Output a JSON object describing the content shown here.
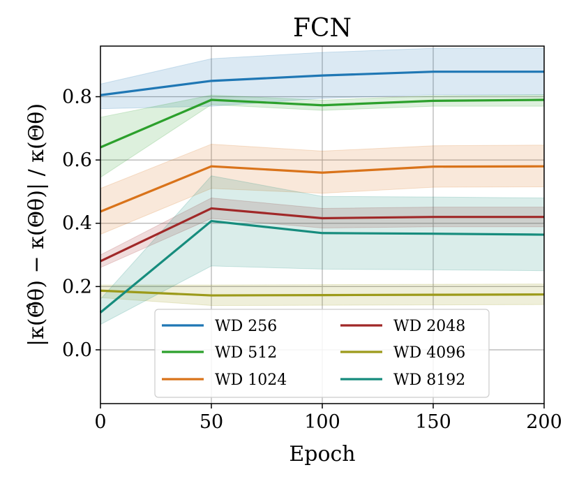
{
  "chart_data": {
    "type": "line",
    "title": "FCN",
    "xlabel": "Epoch",
    "ylabel": "|κ(Θ̂θ) − κ(Θθ)| / κ(Θθ)",
    "xlim": [
      0,
      200
    ],
    "ylim": [
      -0.17,
      0.96
    ],
    "xticks": [
      0,
      50,
      100,
      150,
      200
    ],
    "xtick_labels": [
      "0",
      "50",
      "100",
      "150",
      "200"
    ],
    "yticks": [
      0.0,
      0.2,
      0.4,
      0.6,
      0.8
    ],
    "ytick_labels": [
      "0.0",
      "0.2",
      "0.4",
      "0.6",
      "0.8"
    ],
    "grid": true,
    "legend_position": "bottom-center",
    "legend_columns": 2,
    "x": [
      0,
      50,
      100,
      150,
      200
    ],
    "series": [
      {
        "name": "WD 256",
        "color": "#1f77b4",
        "values": [
          0.805,
          0.85,
          0.867,
          0.879,
          0.879
        ],
        "lower": [
          0.762,
          0.77,
          0.795,
          0.806,
          0.806
        ],
        "upper": [
          0.84,
          0.92,
          0.94,
          0.953,
          0.953
        ]
      },
      {
        "name": "WD 512",
        "color": "#2ca02c",
        "values": [
          0.64,
          0.79,
          0.773,
          0.787,
          0.79
        ],
        "lower": [
          0.545,
          0.775,
          0.757,
          0.77,
          0.77
        ],
        "upper": [
          0.735,
          0.805,
          0.789,
          0.803,
          0.806
        ]
      },
      {
        "name": "WD 1024",
        "color": "#d9731a",
        "values": [
          0.437,
          0.58,
          0.56,
          0.579,
          0.58
        ],
        "lower": [
          0.365,
          0.51,
          0.495,
          0.514,
          0.515
        ],
        "upper": [
          0.51,
          0.65,
          0.628,
          0.645,
          0.647
        ]
      },
      {
        "name": "WD 2048",
        "color": "#a02828",
        "values": [
          0.28,
          0.447,
          0.416,
          0.42,
          0.42
        ],
        "lower": [
          0.26,
          0.415,
          0.385,
          0.389,
          0.389
        ],
        "upper": [
          0.3,
          0.48,
          0.447,
          0.451,
          0.451
        ]
      },
      {
        "name": "WD 4096",
        "color": "#9c9a1a",
        "values": [
          0.187,
          0.172,
          0.173,
          0.174,
          0.175
        ],
        "lower": [
          0.165,
          0.14,
          0.141,
          0.142,
          0.143
        ],
        "upper": [
          0.205,
          0.205,
          0.206,
          0.207,
          0.208
        ]
      },
      {
        "name": "WD 8192",
        "color": "#168c7d",
        "values": [
          0.118,
          0.407,
          0.369,
          0.367,
          0.364
        ],
        "lower": [
          0.08,
          0.265,
          0.255,
          0.253,
          0.25
        ],
        "upper": [
          0.16,
          0.55,
          0.485,
          0.483,
          0.48
        ]
      }
    ]
  }
}
